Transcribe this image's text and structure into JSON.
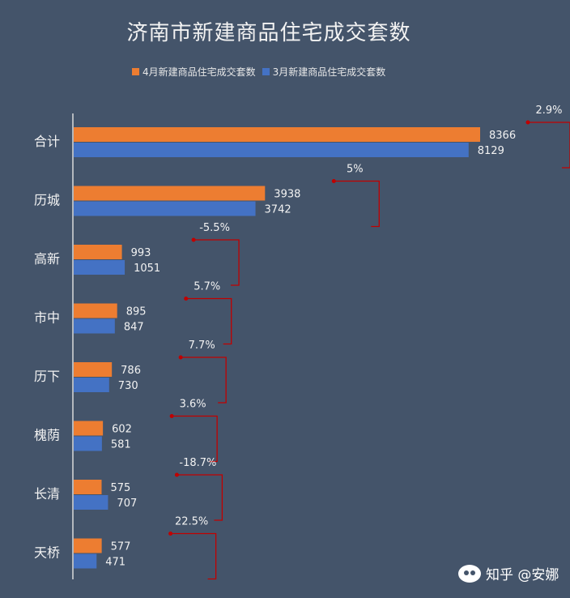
{
  "chart_data": {
    "type": "bar",
    "orientation": "horizontal",
    "title": "济南市新建商品住宅成交套数",
    "categories": [
      "合计",
      "历城",
      "高新",
      "市中",
      "历下",
      "槐荫",
      "长清",
      "天桥"
    ],
    "series": [
      {
        "name": "4月新建商品住宅成交套数",
        "color": "#ed7d31",
        "values": [
          8366,
          3938,
          993,
          895,
          786,
          602,
          575,
          577
        ]
      },
      {
        "name": "3月新建商品住宅成交套数",
        "color": "#4472c4",
        "values": [
          8129,
          3742,
          1051,
          847,
          730,
          581,
          707,
          471
        ]
      }
    ],
    "change_labels": [
      "2.9%",
      "5%",
      "-5.5%",
      "5.7%",
      "7.7%",
      "3.6%",
      "-18.7%",
      "22.5%"
    ],
    "legend_position": "top",
    "grid": false,
    "xlim": [
      0,
      8800
    ]
  },
  "watermark": {
    "text": "知乎 @安娜"
  },
  "colors": {
    "background": "#44546a",
    "text": "#f2f2f2",
    "connector": "#c00000"
  }
}
